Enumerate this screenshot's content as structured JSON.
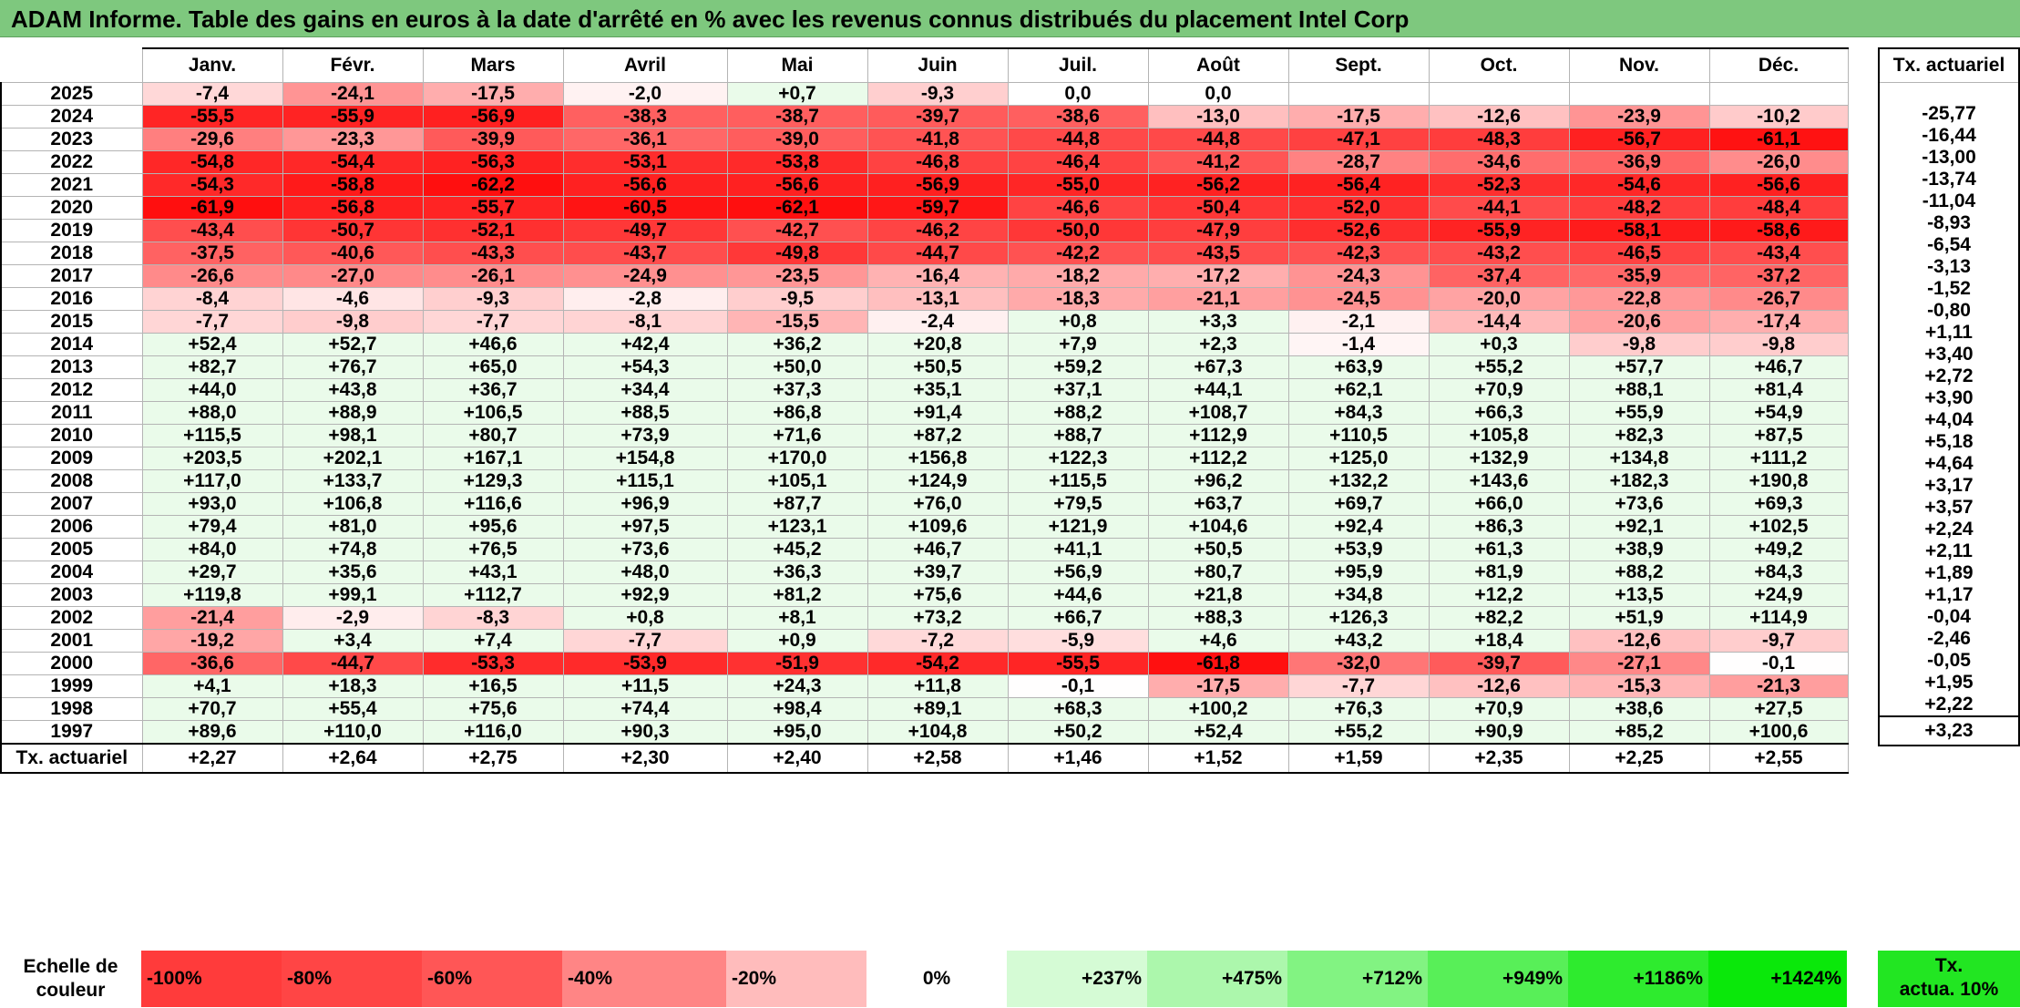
{
  "title": "ADAM Informe. Table des gains en euros à la date d'arrêté en % avec les revenus connus distribués du placement Intel Corp",
  "months": [
    "Janv.",
    "Févr.",
    "Mars",
    "Avril",
    "Mai",
    "Juin",
    "Juil.",
    "Août",
    "Sept.",
    "Oct.",
    "Nov.",
    "Déc."
  ],
  "rate_header": "Tx. actuariel",
  "rows": [
    {
      "year": "2025",
      "values": [
        "-7,4",
        "-24,1",
        "-17,5",
        "-2,0",
        "+0,7",
        "-9,3",
        "0,0",
        "0,0",
        "",
        "",
        "",
        ""
      ],
      "rate": ""
    },
    {
      "year": "2024",
      "values": [
        "-55,5",
        "-55,9",
        "-56,9",
        "-38,3",
        "-38,7",
        "-39,7",
        "-38,6",
        "-13,0",
        "-17,5",
        "-12,6",
        "-23,9",
        "-10,2"
      ],
      "rate": "-25,77"
    },
    {
      "year": "2023",
      "values": [
        "-29,6",
        "-23,3",
        "-39,9",
        "-36,1",
        "-39,0",
        "-41,8",
        "-44,8",
        "-44,8",
        "-47,1",
        "-48,3",
        "-56,7",
        "-61,1"
      ],
      "rate": "-16,44"
    },
    {
      "year": "2022",
      "values": [
        "-54,8",
        "-54,4",
        "-56,3",
        "-53,1",
        "-53,8",
        "-46,8",
        "-46,4",
        "-41,2",
        "-28,7",
        "-34,6",
        "-36,9",
        "-26,0"
      ],
      "rate": "-13,00"
    },
    {
      "year": "2021",
      "values": [
        "-54,3",
        "-58,8",
        "-62,2",
        "-56,6",
        "-56,6",
        "-56,9",
        "-55,0",
        "-56,2",
        "-56,4",
        "-52,3",
        "-54,6",
        "-56,6"
      ],
      "rate": "-13,74"
    },
    {
      "year": "2020",
      "values": [
        "-61,9",
        "-56,8",
        "-55,7",
        "-60,5",
        "-62,1",
        "-59,7",
        "-46,6",
        "-50,4",
        "-52,0",
        "-44,1",
        "-48,2",
        "-48,4"
      ],
      "rate": "-11,04"
    },
    {
      "year": "2019",
      "values": [
        "-43,4",
        "-50,7",
        "-52,1",
        "-49,7",
        "-42,7",
        "-46,2",
        "-50,0",
        "-47,9",
        "-52,6",
        "-55,9",
        "-58,1",
        "-58,6"
      ],
      "rate": "-8,93"
    },
    {
      "year": "2018",
      "values": [
        "-37,5",
        "-40,6",
        "-43,3",
        "-43,7",
        "-49,8",
        "-44,7",
        "-42,2",
        "-43,5",
        "-42,3",
        "-43,2",
        "-46,5",
        "-43,4"
      ],
      "rate": "-6,54"
    },
    {
      "year": "2017",
      "values": [
        "-26,6",
        "-27,0",
        "-26,1",
        "-24,9",
        "-23,5",
        "-16,4",
        "-18,2",
        "-17,2",
        "-24,3",
        "-37,4",
        "-35,9",
        "-37,2"
      ],
      "rate": "-3,13"
    },
    {
      "year": "2016",
      "values": [
        "-8,4",
        "-4,6",
        "-9,3",
        "-2,8",
        "-9,5",
        "-13,1",
        "-18,3",
        "-21,1",
        "-24,5",
        "-20,0",
        "-22,8",
        "-26,7"
      ],
      "rate": "-1,52"
    },
    {
      "year": "2015",
      "values": [
        "-7,7",
        "-9,8",
        "-7,7",
        "-8,1",
        "-15,5",
        "-2,4",
        "+0,8",
        "+3,3",
        "-2,1",
        "-14,4",
        "-20,6",
        "-17,4"
      ],
      "rate": "-0,80"
    },
    {
      "year": "2014",
      "values": [
        "+52,4",
        "+52,7",
        "+46,6",
        "+42,4",
        "+36,2",
        "+20,8",
        "+7,9",
        "+2,3",
        "-1,4",
        "+0,3",
        "-9,8",
        "-9,8"
      ],
      "rate": "+1,11"
    },
    {
      "year": "2013",
      "values": [
        "+82,7",
        "+76,7",
        "+65,0",
        "+54,3",
        "+50,0",
        "+50,5",
        "+59,2",
        "+67,3",
        "+63,9",
        "+55,2",
        "+57,7",
        "+46,7"
      ],
      "rate": "+3,40"
    },
    {
      "year": "2012",
      "values": [
        "+44,0",
        "+43,8",
        "+36,7",
        "+34,4",
        "+37,3",
        "+35,1",
        "+37,1",
        "+44,1",
        "+62,1",
        "+70,9",
        "+88,1",
        "+81,4"
      ],
      "rate": "+2,72"
    },
    {
      "year": "2011",
      "values": [
        "+88,0",
        "+88,9",
        "+106,5",
        "+88,5",
        "+86,8",
        "+91,4",
        "+88,2",
        "+108,7",
        "+84,3",
        "+66,3",
        "+55,9",
        "+54,9"
      ],
      "rate": "+3,90"
    },
    {
      "year": "2010",
      "values": [
        "+115,5",
        "+98,1",
        "+80,7",
        "+73,9",
        "+71,6",
        "+87,2",
        "+88,7",
        "+112,9",
        "+110,5",
        "+105,8",
        "+82,3",
        "+87,5"
      ],
      "rate": "+4,04"
    },
    {
      "year": "2009",
      "values": [
        "+203,5",
        "+202,1",
        "+167,1",
        "+154,8",
        "+170,0",
        "+156,8",
        "+122,3",
        "+112,2",
        "+125,0",
        "+132,9",
        "+134,8",
        "+111,2"
      ],
      "rate": "+5,18"
    },
    {
      "year": "2008",
      "values": [
        "+117,0",
        "+133,7",
        "+129,3",
        "+115,1",
        "+105,1",
        "+124,9",
        "+115,5",
        "+96,2",
        "+132,2",
        "+143,6",
        "+182,3",
        "+190,8"
      ],
      "rate": "+4,64"
    },
    {
      "year": "2007",
      "values": [
        "+93,0",
        "+106,8",
        "+116,6",
        "+96,9",
        "+87,7",
        "+76,0",
        "+79,5",
        "+63,7",
        "+69,7",
        "+66,0",
        "+73,6",
        "+69,3"
      ],
      "rate": "+3,17"
    },
    {
      "year": "2006",
      "values": [
        "+79,4",
        "+81,0",
        "+95,6",
        "+97,5",
        "+123,1",
        "+109,6",
        "+121,9",
        "+104,6",
        "+92,4",
        "+86,3",
        "+92,1",
        "+102,5"
      ],
      "rate": "+3,57"
    },
    {
      "year": "2005",
      "values": [
        "+84,0",
        "+74,8",
        "+76,5",
        "+73,6",
        "+45,2",
        "+46,7",
        "+41,1",
        "+50,5",
        "+53,9",
        "+61,3",
        "+38,9",
        "+49,2"
      ],
      "rate": "+2,24"
    },
    {
      "year": "2004",
      "values": [
        "+29,7",
        "+35,6",
        "+43,1",
        "+48,0",
        "+36,3",
        "+39,7",
        "+56,9",
        "+80,7",
        "+95,9",
        "+81,9",
        "+88,2",
        "+84,3"
      ],
      "rate": "+2,11"
    },
    {
      "year": "2003",
      "values": [
        "+119,8",
        "+99,1",
        "+112,7",
        "+92,9",
        "+81,2",
        "+75,6",
        "+44,6",
        "+21,8",
        "+34,8",
        "+12,2",
        "+13,5",
        "+24,9"
      ],
      "rate": "+1,89"
    },
    {
      "year": "2002",
      "values": [
        "-21,4",
        "-2,9",
        "-8,3",
        "+0,8",
        "+8,1",
        "+73,2",
        "+66,7",
        "+88,3",
        "+126,3",
        "+82,2",
        "+51,9",
        "+114,9"
      ],
      "rate": "+1,17"
    },
    {
      "year": "2001",
      "values": [
        "-19,2",
        "+3,4",
        "+7,4",
        "-7,7",
        "+0,9",
        "-7,2",
        "-5,9",
        "+4,6",
        "+43,2",
        "+18,4",
        "-12,6",
        "-9,7"
      ],
      "rate": "-0,04"
    },
    {
      "year": "2000",
      "values": [
        "-36,6",
        "-44,7",
        "-53,3",
        "-53,9",
        "-51,9",
        "-54,2",
        "-55,5",
        "-61,8",
        "-32,0",
        "-39,7",
        "-27,1",
        "-0,1"
      ],
      "rate": "-2,46"
    },
    {
      "year": "1999",
      "values": [
        "+4,1",
        "+18,3",
        "+16,5",
        "+11,5",
        "+24,3",
        "+11,8",
        "-0,1",
        "-17,5",
        "-7,7",
        "-12,6",
        "-15,3",
        "-21,3"
      ],
      "rate": "-0,05"
    },
    {
      "year": "1998",
      "values": [
        "+70,7",
        "+55,4",
        "+75,6",
        "+74,4",
        "+98,4",
        "+89,1",
        "+68,3",
        "+100,2",
        "+76,3",
        "+70,9",
        "+38,6",
        "+27,5"
      ],
      "rate": "+1,95"
    },
    {
      "year": "1997",
      "values": [
        "+89,6",
        "+110,0",
        "+116,0",
        "+90,3",
        "+95,0",
        "+104,8",
        "+50,2",
        "+52,4",
        "+55,2",
        "+90,9",
        "+85,2",
        "+100,6"
      ],
      "rate": "+2,22"
    }
  ],
  "avg_row": {
    "label": "Tx. actuariel",
    "values": [
      "+2,27",
      "+2,64",
      "+2,75",
      "+2,30",
      "+2,40",
      "+2,58",
      "+1,46",
      "+1,52",
      "+1,59",
      "+2,35",
      "+2,25",
      "+2,55"
    ],
    "rate": "+3,23"
  },
  "color_scale": {
    "label_line1": "Echelle de",
    "label_line2": "couleur",
    "steps": [
      {
        "label": "-100%",
        "color": "#ff3b3b"
      },
      {
        "label": "-80%",
        "color": "#ff4545"
      },
      {
        "label": "-60%",
        "color": "#ff5656"
      },
      {
        "label": "-40%",
        "color": "#ff8585"
      },
      {
        "label": "-20%",
        "color": "#ffbcbc"
      },
      {
        "label": "0%",
        "color": "#ffffff"
      },
      {
        "label": "+237%",
        "color": "#d5fbd5"
      },
      {
        "label": "+475%",
        "color": "#acf7ac"
      },
      {
        "label": "+712%",
        "color": "#82f382"
      },
      {
        "label": "+949%",
        "color": "#58ef58"
      },
      {
        "label": "+1186%",
        "color": "#2eeb2e"
      },
      {
        "label": "+1424%",
        "color": "#0ae80a"
      }
    ],
    "actua_line1": "Tx.",
    "actua_line2": "actua. 10%",
    "actua_color": "#22e622"
  }
}
